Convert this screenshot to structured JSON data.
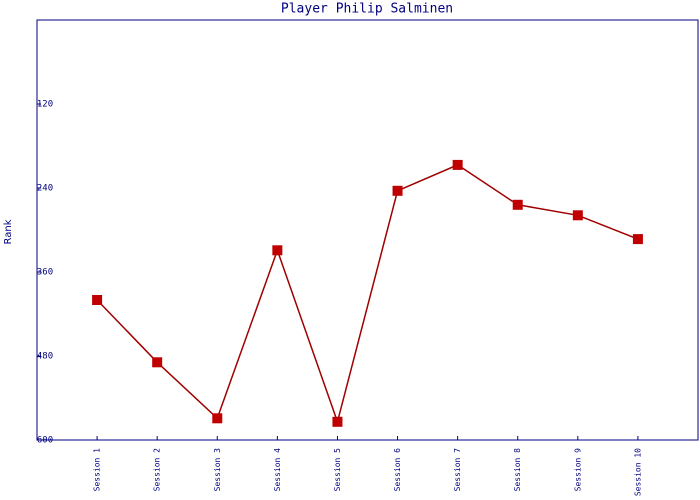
{
  "chart_data": {
    "type": "line",
    "title": "Player Philip Salminen",
    "y_label": "Rank",
    "categories": [
      "Session 1",
      "Session 2",
      "Session 3",
      "Session 4",
      "Session 5",
      "Session 6",
      "Session 7",
      "Session 8",
      "Session 9",
      "Session 10"
    ],
    "series": [
      {
        "name": "Rank",
        "color": "#a00000",
        "values": [
          400,
          489,
          569,
          329,
          574,
          244,
          207,
          264,
          279,
          313
        ]
      }
    ],
    "ylim": [
      600,
      0
    ],
    "yticks": [
      120,
      240,
      360,
      480,
      600
    ],
    "grid": false
  }
}
